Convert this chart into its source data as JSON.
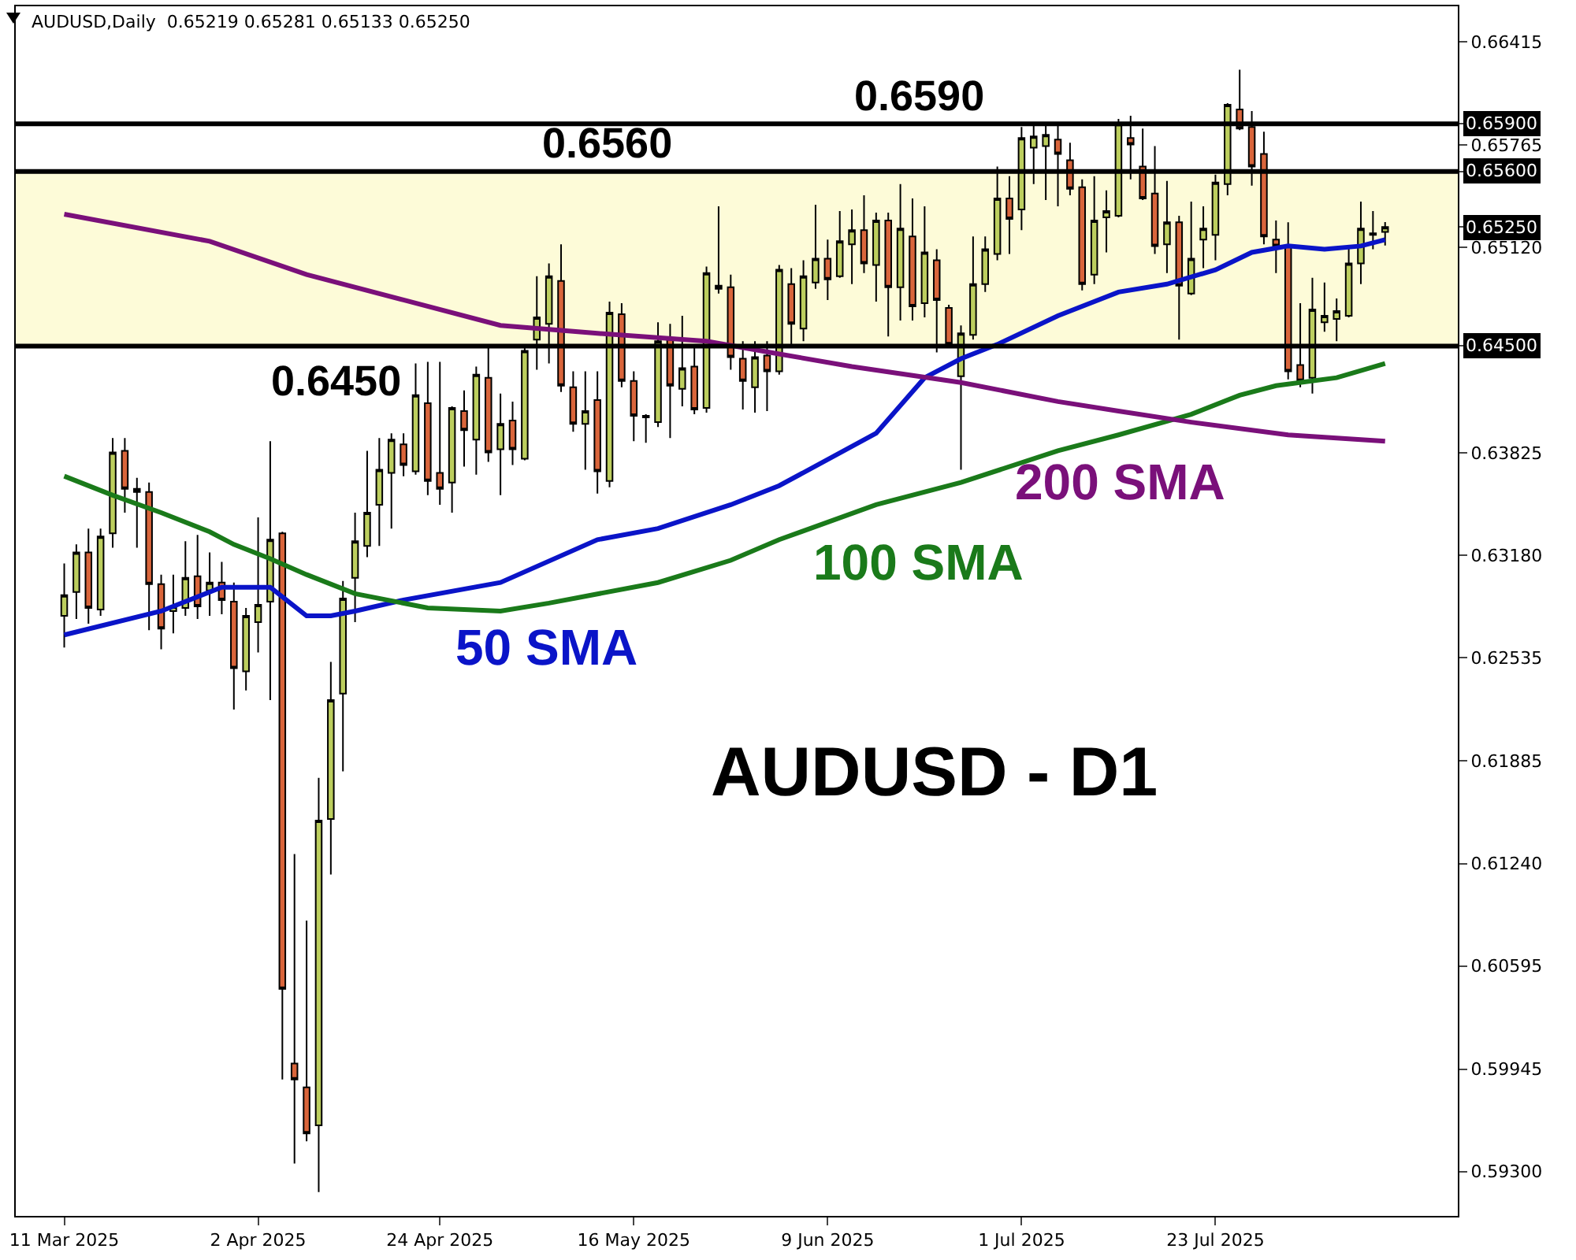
{
  "chart_data": {
    "type": "candlestick",
    "title": "AUDUSD,Daily  0.65219 0.65281 0.65133 0.65250",
    "categories": [
      "11 Mar 2025",
      null,
      null,
      null,
      null,
      null,
      null,
      null,
      null,
      null,
      null,
      null,
      null,
      null,
      null,
      null,
      "2 Apr 2025",
      null,
      null,
      null,
      null,
      null,
      null,
      null,
      null,
      null,
      null,
      null,
      null,
      null,
      null,
      "24 Apr 2025",
      null,
      null,
      null,
      null,
      null,
      null,
      null,
      null,
      null,
      null,
      null,
      null,
      null,
      null,
      null,
      "16 May 2025",
      null,
      null,
      null,
      null,
      null,
      null,
      null,
      null,
      null,
      null,
      null,
      null,
      null,
      null,
      null,
      "9 Jun 2025",
      null,
      null,
      null,
      null,
      null,
      null,
      null,
      null,
      null,
      null,
      null,
      null,
      null,
      null,
      null,
      "1 Jul 2025",
      null,
      null,
      null,
      null,
      null,
      null,
      null,
      null,
      null,
      null,
      null,
      null,
      null,
      null,
      null,
      "23 Jul 2025",
      null,
      null,
      null,
      null,
      null,
      null,
      null,
      null,
      null,
      null,
      null,
      null,
      null,
      null
    ],
    "ohlc": [
      [
        0.628,
        0.6313,
        0.626,
        0.6293
      ],
      [
        0.6295,
        0.6325,
        0.6278,
        0.632
      ],
      [
        0.632,
        0.6335,
        0.6275,
        0.6285
      ],
      [
        0.6284,
        0.6335,
        0.628,
        0.633
      ],
      [
        0.6332,
        0.6392,
        0.6323,
        0.6383
      ],
      [
        0.6384,
        0.6392,
        0.6345,
        0.636
      ],
      [
        0.636,
        0.6367,
        0.6323,
        0.6358
      ],
      [
        0.6358,
        0.6364,
        0.6271,
        0.63
      ],
      [
        0.63,
        0.6306,
        0.6259,
        0.6272
      ],
      [
        0.6283,
        0.6306,
        0.6269,
        0.6286
      ],
      [
        0.6285,
        0.6327,
        0.628,
        0.6304
      ],
      [
        0.6305,
        0.6331,
        0.6278,
        0.6286
      ],
      [
        0.6296,
        0.632,
        0.628,
        0.6301
      ],
      [
        0.6301,
        0.6314,
        0.6281,
        0.629
      ],
      [
        0.6289,
        0.6301,
        0.6221,
        0.6247
      ],
      [
        0.6245,
        0.6285,
        0.6233,
        0.628
      ],
      [
        0.6276,
        0.6342,
        0.6257,
        0.6287
      ],
      [
        0.6289,
        0.639,
        0.6227,
        0.6328
      ],
      [
        0.6332,
        0.6333,
        0.5988,
        0.6045
      ],
      [
        0.5998,
        0.613,
        0.5935,
        0.5988
      ],
      [
        0.5983,
        0.6088,
        0.5949,
        0.5954
      ],
      [
        0.5959,
        0.6178,
        0.5917,
        0.6151
      ],
      [
        0.6152,
        0.6251,
        0.6117,
        0.6227
      ],
      [
        0.6231,
        0.6302,
        0.6182,
        0.6291
      ],
      [
        0.6304,
        0.6345,
        0.6276,
        0.6327
      ],
      [
        0.6324,
        0.6384,
        0.6317,
        0.6345
      ],
      [
        0.635,
        0.6392,
        0.6324,
        0.6372
      ],
      [
        0.637,
        0.6395,
        0.6335,
        0.6391
      ],
      [
        0.6388,
        0.6395,
        0.6368,
        0.6375
      ],
      [
        0.6371,
        0.6439,
        0.6369,
        0.6419
      ],
      [
        0.6414,
        0.644,
        0.6356,
        0.6365
      ],
      [
        0.637,
        0.644,
        0.635,
        0.636
      ],
      [
        0.6364,
        0.6412,
        0.6345,
        0.6411
      ],
      [
        0.6409,
        0.6422,
        0.6374,
        0.6397
      ],
      [
        0.6391,
        0.6437,
        0.6369,
        0.6432
      ],
      [
        0.643,
        0.6449,
        0.6377,
        0.6383
      ],
      [
        0.6385,
        0.642,
        0.6356,
        0.6401
      ],
      [
        0.6403,
        0.6415,
        0.6375,
        0.6385
      ],
      [
        0.6379,
        0.6451,
        0.6378,
        0.6447
      ],
      [
        0.6454,
        0.6494,
        0.6435,
        0.6468
      ],
      [
        0.6464,
        0.6502,
        0.6439,
        0.6494
      ],
      [
        0.6491,
        0.6514,
        0.6421,
        0.6425
      ],
      [
        0.6424,
        0.6434,
        0.6396,
        0.6401
      ],
      [
        0.6401,
        0.6434,
        0.6372,
        0.6409
      ],
      [
        0.6416,
        0.6434,
        0.6357,
        0.6371
      ],
      [
        0.6365,
        0.6478,
        0.6361,
        0.6471
      ],
      [
        0.647,
        0.6477,
        0.6424,
        0.6428
      ],
      [
        0.6428,
        0.6434,
        0.639,
        0.6406
      ],
      [
        0.6405,
        0.6407,
        0.6389,
        0.6406
      ],
      [
        0.6402,
        0.6465,
        0.6399,
        0.6453
      ],
      [
        0.6454,
        0.6464,
        0.6392,
        0.6425
      ],
      [
        0.6423,
        0.6469,
        0.6412,
        0.6436
      ],
      [
        0.6437,
        0.6449,
        0.6407,
        0.641
      ],
      [
        0.6411,
        0.65,
        0.6408,
        0.6496
      ],
      [
        0.6488,
        0.6538,
        0.6483,
        0.6486
      ],
      [
        0.6487,
        0.6495,
        0.6435,
        0.6443
      ],
      [
        0.6442,
        0.6453,
        0.641,
        0.6428
      ],
      [
        0.6424,
        0.6453,
        0.6408,
        0.6443
      ],
      [
        0.6444,
        0.6453,
        0.6409,
        0.6434
      ],
      [
        0.6434,
        0.6501,
        0.6432,
        0.6498
      ],
      [
        0.6489,
        0.6499,
        0.645,
        0.6464
      ],
      [
        0.6461,
        0.6504,
        0.6453,
        0.6494
      ],
      [
        0.649,
        0.6539,
        0.6486,
        0.6505
      ],
      [
        0.6505,
        0.6517,
        0.6479,
        0.6492
      ],
      [
        0.6494,
        0.6535,
        0.6493,
        0.6516
      ],
      [
        0.6514,
        0.6536,
        0.6489,
        0.6523
      ],
      [
        0.6523,
        0.6545,
        0.6496,
        0.6502
      ],
      [
        0.6501,
        0.6534,
        0.6478,
        0.6529
      ],
      [
        0.6529,
        0.6534,
        0.6456,
        0.6487
      ],
      [
        0.6487,
        0.6552,
        0.6466,
        0.6524
      ],
      [
        0.6519,
        0.6543,
        0.6466,
        0.6475
      ],
      [
        0.6477,
        0.6538,
        0.6468,
        0.6509
      ],
      [
        0.6504,
        0.6511,
        0.6446,
        0.6479
      ],
      [
        0.6474,
        0.6476,
        0.645,
        0.6451
      ],
      [
        0.6431,
        0.6463,
        0.6372,
        0.6458
      ],
      [
        0.6457,
        0.6519,
        0.6454,
        0.6489
      ],
      [
        0.6489,
        0.6519,
        0.6484,
        0.6511
      ],
      [
        0.6508,
        0.6563,
        0.6504,
        0.6543
      ],
      [
        0.6543,
        0.6557,
        0.6508,
        0.653
      ],
      [
        0.6536,
        0.6588,
        0.6523,
        0.6581
      ],
      [
        0.6575,
        0.659,
        0.6552,
        0.6582
      ],
      [
        0.6576,
        0.659,
        0.6542,
        0.6583
      ],
      [
        0.658,
        0.659,
        0.6538,
        0.6571
      ],
      [
        0.6567,
        0.6578,
        0.6545,
        0.6549
      ],
      [
        0.655,
        0.6555,
        0.6485,
        0.6489
      ],
      [
        0.6495,
        0.6557,
        0.6489,
        0.6529
      ],
      [
        0.6531,
        0.6548,
        0.6509,
        0.6535
      ],
      [
        0.6532,
        0.6593,
        0.6531,
        0.659
      ],
      [
        0.6581,
        0.6595,
        0.6555,
        0.6577
      ],
      [
        0.6563,
        0.6587,
        0.6542,
        0.6543
      ],
      [
        0.6546,
        0.6576,
        0.6508,
        0.6513
      ],
      [
        0.6514,
        0.6554,
        0.6496,
        0.6528
      ],
      [
        0.6528,
        0.6532,
        0.6454,
        0.6488
      ],
      [
        0.6483,
        0.6541,
        0.6482,
        0.6505
      ],
      [
        0.6517,
        0.6538,
        0.6499,
        0.6524
      ],
      [
        0.652,
        0.6558,
        0.6504,
        0.6553
      ],
      [
        0.6552,
        0.6603,
        0.6545,
        0.6602
      ],
      [
        0.6599,
        0.6624,
        0.6586,
        0.6587
      ],
      [
        0.6588,
        0.6598,
        0.6551,
        0.6563
      ],
      [
        0.6571,
        0.6585,
        0.6514,
        0.6519
      ],
      [
        0.6517,
        0.6529,
        0.6496,
        0.6513
      ],
      [
        0.6513,
        0.6528,
        0.6429,
        0.6434
      ],
      [
        0.6438,
        0.6477,
        0.6424,
        0.6428
      ],
      [
        0.643,
        0.6493,
        0.642,
        0.6473
      ],
      [
        0.6465,
        0.649,
        0.6459,
        0.6469
      ],
      [
        0.6467,
        0.648,
        0.6453,
        0.6472
      ],
      [
        0.6469,
        0.6513,
        0.6468,
        0.6502
      ],
      [
        0.6502,
        0.6541,
        0.6489,
        0.6524
      ],
      [
        0.652,
        0.6535,
        0.6511,
        0.6521
      ],
      [
        0.65219,
        0.65281,
        0.65133,
        0.6525
      ]
    ],
    "series": [
      {
        "name": "50 SMA",
        "type": "line",
        "color": "#0a14c8",
        "values": [
          0.6268,
          null,
          null,
          null,
          null,
          null,
          null,
          null,
          0.6283,
          null,
          null,
          null,
          null,
          0.6298,
          null,
          null,
          null,
          0.6298,
          null,
          null,
          0.628,
          null,
          0.628,
          null,
          0.6283,
          null,
          null,
          null,
          0.629,
          null,
          null,
          null,
          null,
          null,
          null,
          null,
          0.6301,
          null,
          null,
          null,
          null,
          null,
          null,
          null,
          0.6328,
          null,
          null,
          null,
          null,
          0.6335,
          null,
          null,
          null,
          null,
          null,
          0.635,
          null,
          null,
          null,
          0.6362,
          null,
          null,
          null,
          null,
          null,
          null,
          null,
          0.6395,
          null,
          null,
          null,
          0.643,
          null,
          null,
          0.6442,
          null,
          null,
          0.6451,
          null,
          null,
          null,
          null,
          0.6469,
          null,
          null,
          null,
          null,
          0.6484,
          null,
          null,
          null,
          0.6489,
          null,
          null,
          null,
          0.6498,
          null,
          null,
          0.6509,
          null,
          null,
          0.6513,
          null,
          null,
          0.6511,
          null,
          null,
          0.6513,
          null,
          0.6517
        ]
      },
      {
        "name": "100 SMA",
        "type": "line",
        "color": "#1a7a1a",
        "values": [
          0.6368,
          null,
          null,
          null,
          0.6356,
          null,
          null,
          null,
          0.6345,
          null,
          null,
          null,
          0.6333,
          null,
          0.6325,
          null,
          null,
          0.6316,
          null,
          null,
          0.6306,
          null,
          null,
          null,
          0.6294,
          null,
          null,
          null,
          null,
          null,
          0.6285,
          null,
          null,
          null,
          null,
          null,
          0.6283,
          null,
          null,
          null,
          0.6288,
          null,
          null,
          null,
          null,
          null,
          null,
          null,
          null,
          0.6301,
          null,
          null,
          null,
          null,
          null,
          0.6315,
          null,
          null,
          null,
          0.6328,
          null,
          null,
          null,
          null,
          null,
          null,
          null,
          0.635,
          null,
          null,
          null,
          null,
          null,
          null,
          0.6364,
          null,
          null,
          null,
          null,
          null,
          null,
          null,
          0.6384,
          null,
          null,
          null,
          null,
          0.6394,
          null,
          null,
          null,
          null,
          null,
          0.6407,
          null,
          null,
          null,
          0.6419,
          null,
          null,
          0.6425,
          null,
          null,
          null,
          null,
          0.643,
          null,
          null,
          null,
          0.6439
        ]
      },
      {
        "name": "200 SMA",
        "type": "line",
        "color": "#7a107a",
        "values": [
          0.6533,
          null,
          null,
          null,
          null,
          null,
          null,
          null,
          null,
          null,
          null,
          null,
          0.6516,
          null,
          null,
          null,
          null,
          null,
          null,
          null,
          0.6495,
          null,
          null,
          null,
          null,
          null,
          null,
          null,
          0.6479,
          null,
          null,
          null,
          null,
          null,
          null,
          null,
          0.6463,
          null,
          null,
          null,
          null,
          null,
          null,
          null,
          0.6458,
          null,
          null,
          null,
          null,
          null,
          null,
          null,
          null,
          0.6453,
          null,
          null,
          null,
          null,
          null,
          0.6445,
          null,
          null,
          null,
          null,
          null,
          0.6437,
          null,
          null,
          null,
          null,
          null,
          null,
          null,
          null,
          0.6427,
          null,
          null,
          null,
          null,
          null,
          null,
          null,
          0.6415,
          null,
          null,
          null,
          null,
          0.6409,
          null,
          null,
          null,
          null,
          null,
          0.6402,
          null,
          null,
          null,
          null,
          null,
          null,
          null,
          0.6394,
          null,
          null,
          null,
          null,
          null,
          null,
          null,
          0.639
        ]
      }
    ],
    "ylim": [
      0.5902,
      0.6664
    ],
    "yticks": [
      {
        "value": 0.66415,
        "label": "0.66415"
      },
      {
        "value": 0.659,
        "label": "0.65900"
      },
      {
        "value": 0.65765,
        "label": "0.65765"
      },
      {
        "value": 0.656,
        "label": "0.65600"
      },
      {
        "value": 0.6525,
        "label": "0.65250"
      },
      {
        "value": 0.6512,
        "label": "0.65120"
      },
      {
        "value": 0.645,
        "label": "0.64500"
      },
      {
        "value": 0.63825,
        "label": "0.63825"
      },
      {
        "value": 0.6318,
        "label": "0.63180"
      },
      {
        "value": 0.62535,
        "label": "0.62535"
      },
      {
        "value": 0.61885,
        "label": "0.61885"
      },
      {
        "value": 0.6124,
        "label": "0.61240"
      },
      {
        "value": 0.60595,
        "label": "0.60595"
      },
      {
        "value": 0.59945,
        "label": "0.59945"
      },
      {
        "value": 0.593,
        "label": "0.59300"
      }
    ],
    "ref_lines": [
      {
        "axis": "y",
        "value": 0.659,
        "label": "0.6590",
        "color": "#000000"
      },
      {
        "axis": "y",
        "value": 0.656,
        "label": "0.6560",
        "color": "#000000"
      },
      {
        "axis": "y",
        "value": 0.645,
        "label": "0.6450",
        "color": "#000000"
      }
    ],
    "bands": [
      {
        "axis": "y",
        "from": 0.645,
        "to": 0.656,
        "color": "#fdfbd8"
      }
    ],
    "annotations": [
      "AUDUSD - D1"
    ]
  }
}
